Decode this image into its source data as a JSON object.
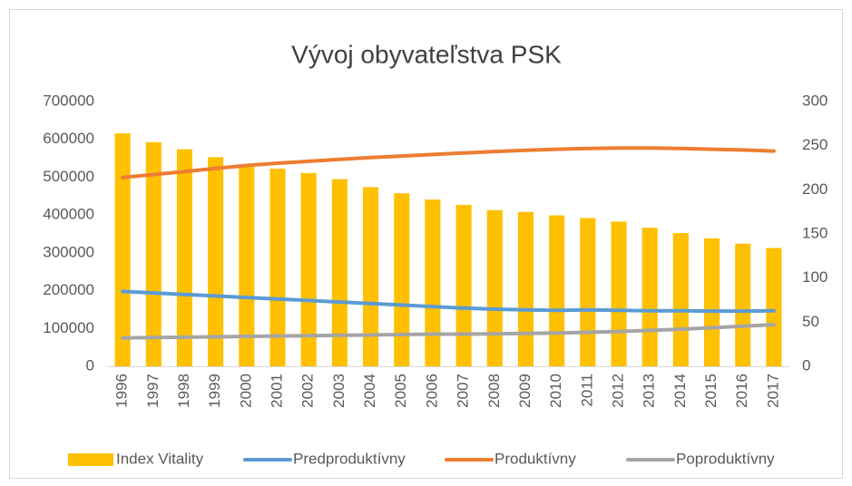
{
  "chart_data": {
    "type": "bar-line",
    "title": "Vývoj obyvateľstva PSK",
    "categories": [
      "1996",
      "1997",
      "1998",
      "1999",
      "2000",
      "2001",
      "2002",
      "2003",
      "2004",
      "2005",
      "2006",
      "2007",
      "2008",
      "2009",
      "2010",
      "2011",
      "2012",
      "2013",
      "2014",
      "2015",
      "2016",
      "2017"
    ],
    "series": [
      {
        "name": "Index Vitality",
        "type": "bar",
        "axis": "y2",
        "color": "#FFC000",
        "values": [
          264,
          254,
          246,
          237,
          229,
          224,
          219,
          212,
          203,
          196,
          189,
          183,
          177,
          175,
          171,
          168,
          164,
          157,
          151,
          145,
          139,
          134
        ]
      },
      {
        "name": "Predproduktívny",
        "type": "line",
        "color": "#5B9BD5",
        "values": [
          198000,
          194000,
          190000,
          186000,
          182000,
          178000,
          174000,
          170000,
          166000,
          162000,
          158000,
          154000,
          151000,
          149000,
          148000,
          149000,
          148000,
          147000,
          147000,
          146000,
          146000,
          147000
        ]
      },
      {
        "name": "Produktívny",
        "type": "line",
        "color": "#ED7D31",
        "values": [
          499000,
          507000,
          515000,
          523000,
          531000,
          537000,
          542000,
          547000,
          552000,
          556000,
          560000,
          564000,
          568000,
          571000,
          574000,
          576000,
          577000,
          577000,
          576000,
          574000,
          572000,
          569000
        ]
      },
      {
        "name": "Poproduktívny",
        "type": "line",
        "color": "#A5A5A5",
        "values": [
          75000,
          76000,
          77000,
          78000,
          79000,
          80000,
          81000,
          82000,
          83000,
          84000,
          85000,
          85000,
          86000,
          87000,
          88000,
          90000,
          92000,
          95000,
          98000,
          102000,
          106000,
          110000
        ]
      }
    ],
    "ylim": [
      0,
      700000
    ],
    "yticks": [
      0,
      100000,
      200000,
      300000,
      400000,
      500000,
      600000,
      700000
    ],
    "y2lim": [
      0,
      300
    ],
    "y2ticks": [
      0,
      50,
      100,
      150,
      200,
      250,
      300
    ],
    "grid": false,
    "legend": "bottom"
  }
}
